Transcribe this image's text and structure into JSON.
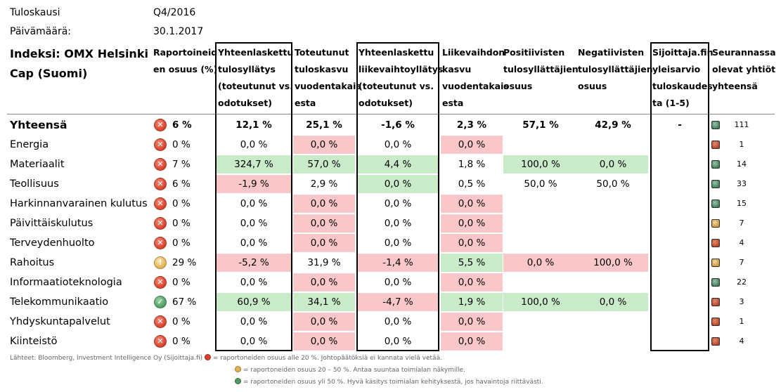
{
  "meta": {
    "period_label": "Tuloskausi",
    "period_value": "Q4/2016",
    "date_label": "Päivämäärä:",
    "date_value": "30.1.2017"
  },
  "index_name_line1": "Indeksi: OMX Helsinki",
  "index_name_line2": "Cap (Suomi)",
  "columns": [
    [
      "Raportoineid",
      "en osuus (%)"
    ],
    [
      "Yhteenlaskettu",
      "tulosyllätys",
      "(toteutunut vs.",
      "odotukset)"
    ],
    [
      "Toteutunut",
      "tuloskasvu",
      "vuodentakais",
      "esta"
    ],
    [
      "Yhteenlaskettu",
      "liikevaihtoyllätys",
      "(toteutunut vs.",
      "odotukset)"
    ],
    [
      "Liikevaihdon",
      "kasvu",
      "vuodentakais",
      "esta"
    ],
    [
      "Positiivisten",
      "tulosyllättäjien",
      "osuus"
    ],
    [
      "Negatiivisten",
      "tulosyllättäjien",
      "osuus"
    ],
    [
      "Sijoittaja.fin",
      "yleisarvio",
      "tuloskaudes",
      "ta (1-5)"
    ],
    [
      "Seurannassa",
      "olevat yhtiöt",
      "yhteensä"
    ]
  ],
  "rows": [
    {
      "name": "Yhteensä",
      "status": "red",
      "reported": "6 %",
      "eps_surprise": "12,1 %",
      "eps_growth": "25,1 %",
      "rev_surprise": "-1,6 %",
      "rev_growth": "2,3 %",
      "pos": "57,1 %",
      "neg": "42,9 %",
      "rating": "-",
      "dot": "g",
      "count": "111"
    },
    {
      "name": "Energia",
      "status": "red",
      "reported": "0 %",
      "eps_surprise": "0,0 %",
      "eps_growth": "0,0 %",
      "rev_surprise": "0,0 %",
      "rev_growth": "0,0 %",
      "pos": "",
      "neg": "",
      "rating": "",
      "dot": "r",
      "count": "1"
    },
    {
      "name": "Materiaalit",
      "status": "red",
      "reported": "7 %",
      "eps_surprise": "324,7 %",
      "eps_growth": "57,0 %",
      "rev_surprise": "4,4 %",
      "rev_growth": "1,8 %",
      "pos": "100,0 %",
      "neg": "0,0 %",
      "rating": "",
      "dot": "g",
      "count": "14"
    },
    {
      "name": "Teollisuus",
      "status": "red",
      "reported": "6 %",
      "eps_surprise": "-1,9 %",
      "eps_growth": "2,9 %",
      "rev_surprise": "0,0 %",
      "rev_growth": "0,5 %",
      "pos": "50,0 %",
      "neg": "50,0 %",
      "rating": "",
      "dot": "g",
      "count": "33"
    },
    {
      "name": "Harkinnanvarainen kulutus",
      "status": "red",
      "reported": "0 %",
      "eps_surprise": "0,0 %",
      "eps_growth": "0,0 %",
      "rev_surprise": "0,0 %",
      "rev_growth": "0,0 %",
      "pos": "",
      "neg": "",
      "rating": "",
      "dot": "g",
      "count": "15"
    },
    {
      "name": "Päivittäiskulutus",
      "status": "red",
      "reported": "0 %",
      "eps_surprise": "0,0 %",
      "eps_growth": "0,0 %",
      "rev_surprise": "0,0 %",
      "rev_growth": "0,0 %",
      "pos": "",
      "neg": "",
      "rating": "",
      "dot": "y",
      "count": "7"
    },
    {
      "name": "Terveydenhuolto",
      "status": "red",
      "reported": "0 %",
      "eps_surprise": "0,0 %",
      "eps_growth": "0,0 %",
      "rev_surprise": "0,0 %",
      "rev_growth": "0,0 %",
      "pos": "",
      "neg": "",
      "rating": "",
      "dot": "r",
      "count": "4"
    },
    {
      "name": "Rahoitus",
      "status": "yellow",
      "reported": "29 %",
      "eps_surprise": "-5,2 %",
      "eps_growth": "31,9 %",
      "rev_surprise": "-1,4 %",
      "rev_growth": "5,5 %",
      "pos": "0,0 %",
      "neg": "100,0 %",
      "rating": "",
      "dot": "y",
      "count": "7"
    },
    {
      "name": "Informaatioteknologia",
      "status": "red",
      "reported": "0 %",
      "eps_surprise": "0,0 %",
      "eps_growth": "0,0 %",
      "rev_surprise": "0,0 %",
      "rev_growth": "0,0 %",
      "pos": "",
      "neg": "",
      "rating": "",
      "dot": "g",
      "count": "22"
    },
    {
      "name": "Telekommunikaatio",
      "status": "green",
      "reported": "67 %",
      "eps_surprise": "60,9 %",
      "eps_growth": "34,1 %",
      "rev_surprise": "-4,7 %",
      "rev_growth": "1,9 %",
      "pos": "100,0 %",
      "neg": "0,0 %",
      "rating": "",
      "dot": "r",
      "count": "3"
    },
    {
      "name": "Yhdyskuntapalvelut",
      "status": "red",
      "reported": "0 %",
      "eps_surprise": "0,0 %",
      "eps_growth": "0,0 %",
      "rev_surprise": "0,0 %",
      "rev_growth": "0,0 %",
      "pos": "",
      "neg": "",
      "rating": "",
      "dot": "r",
      "count": "1"
    },
    {
      "name": "Kiinteistö",
      "status": "red",
      "reported": "0 %",
      "eps_surprise": "0,0 %",
      "eps_growth": "0,0 %",
      "rev_surprise": "0,0 %",
      "rev_growth": "0,0 %",
      "pos": "",
      "neg": "",
      "rating": "",
      "dot": "r",
      "count": "4"
    }
  ],
  "shading": {
    "eps_surprise": [
      "",
      "",
      "green",
      "red",
      "",
      "",
      "",
      "red",
      "",
      "green",
      "",
      ""
    ],
    "eps_growth": [
      "",
      "red",
      "green",
      "",
      "red",
      "red",
      "red",
      "",
      "red",
      "green",
      "red",
      "red"
    ],
    "rev_surprise": [
      "",
      "",
      "green",
      "green",
      "",
      "",
      "",
      "red",
      "",
      "red",
      "",
      ""
    ],
    "rev_growth": [
      "",
      "red",
      "",
      "",
      "red",
      "red",
      "red",
      "green",
      "red",
      "green",
      "red",
      "red"
    ],
    "pos": [
      "",
      "",
      "green",
      "",
      "",
      "",
      "",
      "red",
      "",
      "green",
      "",
      ""
    ],
    "neg": [
      "",
      "",
      "green",
      "",
      "",
      "",
      "",
      "red",
      "",
      "green",
      "",
      ""
    ]
  },
  "colors": {
    "red_fill": "#fac7c9",
    "green_fill": "#c9ebc9"
  },
  "footer": {
    "source": "Lähteet: Bloomberg, Investment Intelligence Oy (Sijoittaja.fi)",
    "legend_red": "= raportoneiden osuus alle 20 %. Johtopäätöksiä ei kannata vielä vetää.",
    "legend_yellow": "= raportoneiden osuus 20 – 50 %. Antaa suuntaa toimialan näkymille.",
    "legend_green": "= raportoneiden osuus yli 50 %. Hyvä käsitys toimialan kehityksestä, jos havaintoja riittävästi."
  }
}
